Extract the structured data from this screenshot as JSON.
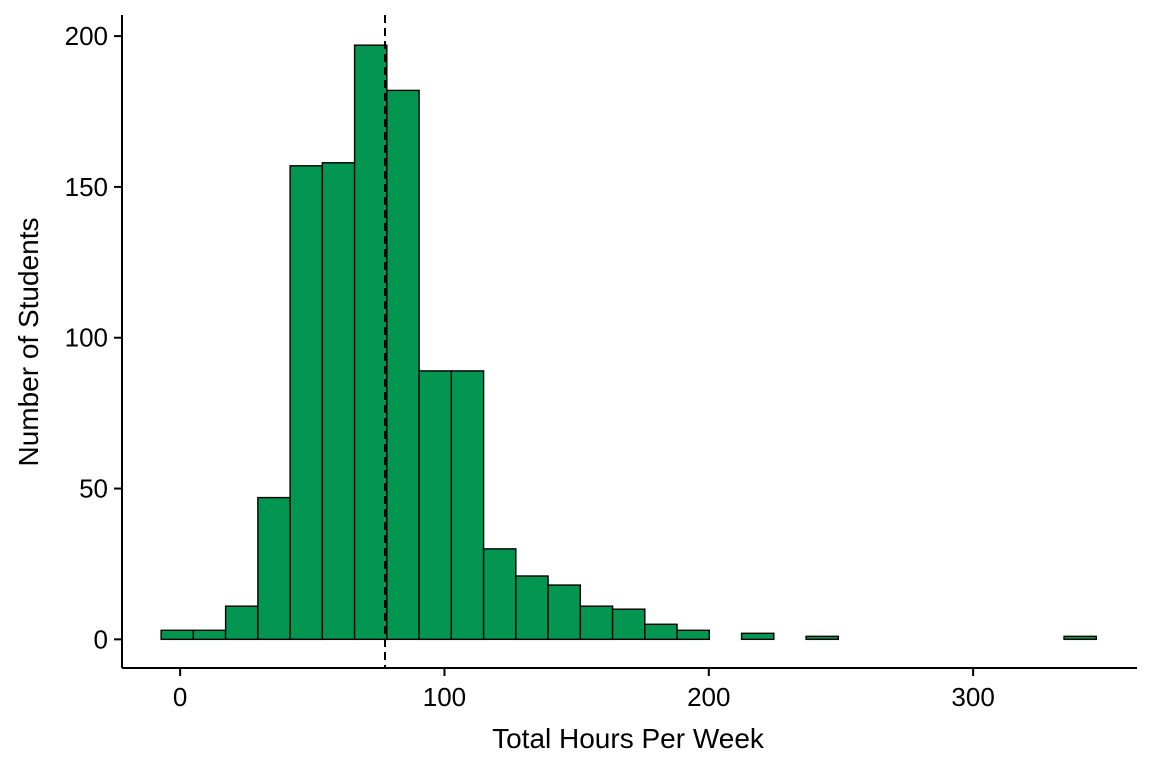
{
  "chart_data": {
    "type": "bar",
    "subtype": "histogram",
    "title": "",
    "xlabel": "Total Hours Per Week",
    "ylabel": "Number of Students",
    "bin_width": 12.2,
    "bins": [
      {
        "x_start": -7.2,
        "x_end": 5.0,
        "count": 3
      },
      {
        "x_start": 5.0,
        "x_end": 17.2,
        "count": 3
      },
      {
        "x_start": 17.2,
        "x_end": 29.4,
        "count": 11
      },
      {
        "x_start": 29.4,
        "x_end": 41.6,
        "count": 47
      },
      {
        "x_start": 41.6,
        "x_end": 53.8,
        "count": 157
      },
      {
        "x_start": 53.8,
        "x_end": 66.0,
        "count": 158
      },
      {
        "x_start": 66.0,
        "x_end": 78.2,
        "count": 197
      },
      {
        "x_start": 78.2,
        "x_end": 90.4,
        "count": 182
      },
      {
        "x_start": 90.4,
        "x_end": 102.6,
        "count": 89
      },
      {
        "x_start": 102.6,
        "x_end": 114.8,
        "count": 89
      },
      {
        "x_start": 114.8,
        "x_end": 127.0,
        "count": 30
      },
      {
        "x_start": 127.0,
        "x_end": 139.2,
        "count": 21
      },
      {
        "x_start": 139.2,
        "x_end": 151.4,
        "count": 18
      },
      {
        "x_start": 151.4,
        "x_end": 163.6,
        "count": 11
      },
      {
        "x_start": 163.6,
        "x_end": 175.8,
        "count": 10
      },
      {
        "x_start": 175.8,
        "x_end": 188.0,
        "count": 5
      },
      {
        "x_start": 188.0,
        "x_end": 200.2,
        "count": 3
      },
      {
        "x_start": 200.2,
        "x_end": 212.4,
        "count": 0
      },
      {
        "x_start": 212.4,
        "x_end": 224.6,
        "count": 2
      },
      {
        "x_start": 224.6,
        "x_end": 236.8,
        "count": 0
      },
      {
        "x_start": 236.8,
        "x_end": 249.0,
        "count": 1
      },
      {
        "x_start": 249.0,
        "x_end": 261.2,
        "count": 0
      },
      {
        "x_start": 261.2,
        "x_end": 273.4,
        "count": 0
      },
      {
        "x_start": 273.4,
        "x_end": 285.6,
        "count": 0
      },
      {
        "x_start": 285.6,
        "x_end": 297.8,
        "count": 0
      },
      {
        "x_start": 297.8,
        "x_end": 310.0,
        "count": 0
      },
      {
        "x_start": 310.0,
        "x_end": 322.2,
        "count": 0
      },
      {
        "x_start": 322.2,
        "x_end": 334.4,
        "count": 0
      },
      {
        "x_start": 334.4,
        "x_end": 346.6,
        "count": 1
      }
    ],
    "mean_line": 77.5,
    "xlim": [
      -22,
      362
    ],
    "ylim": [
      -9.5,
      207
    ],
    "x_ticks": [
      0,
      100,
      200,
      300
    ],
    "y_ticks": [
      0,
      50,
      100,
      150,
      200
    ],
    "grid": false,
    "legend": "none",
    "colors": {
      "bar_fill": "#039650",
      "bar_stroke": "#000000",
      "axis": "#000000",
      "mean_line": "#000000"
    }
  }
}
